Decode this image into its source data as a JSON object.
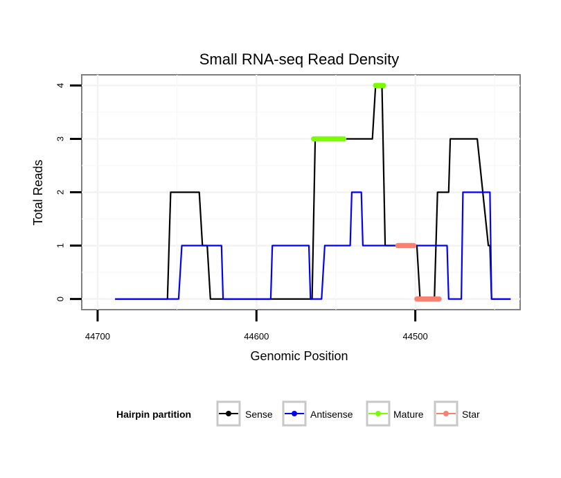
{
  "chart_data": {
    "type": "line",
    "title": "Small RNA-seq Read Density",
    "xlabel": "Genomic Position",
    "ylabel": "Total Reads",
    "xlim": [
      44710,
      44434
    ],
    "ylim": [
      -0.2,
      4.2
    ],
    "x_reversed": true,
    "x_ticks": [
      44700,
      44600,
      44500
    ],
    "y_ticks": [
      0,
      1,
      2,
      3,
      4
    ],
    "grid": true,
    "legend": {
      "title": "Hairpin partition",
      "placement": "bottom",
      "entries": [
        {
          "name": "Sense",
          "color": "#000000"
        },
        {
          "name": "Antisense",
          "color": "#0000ff"
        },
        {
          "name": "Mature",
          "color": "#7cfc00"
        },
        {
          "name": "Star",
          "color": "#fa8072"
        }
      ]
    },
    "series": [
      {
        "name": "Sense",
        "color": "#000000",
        "x": [
          44689,
          44656,
          44654,
          44636,
          44634,
          44631,
          44629,
          44609,
          44587,
          44565,
          44563,
          44545,
          44544,
          44527,
          44525,
          44521,
          44519,
          44502,
          44500,
          44499,
          44497,
          44488,
          44486,
          44479,
          44478,
          44473,
          44472,
          44462,
          44461,
          44454,
          44453,
          44452,
          44451,
          44440
        ],
        "y": [
          0,
          0,
          2,
          2,
          1,
          1,
          0,
          0,
          0,
          0,
          3,
          3,
          3,
          3,
          4,
          4,
          1,
          1,
          1,
          1,
          0,
          0,
          2,
          2,
          3,
          3,
          3,
          3,
          3,
          1,
          1,
          0,
          0,
          0
        ]
      },
      {
        "name": "Antisense",
        "color": "#0000ff",
        "x": [
          44689,
          44649,
          44647,
          44634,
          44633,
          44622,
          44621,
          44591,
          44590,
          44567,
          44566,
          44559,
          44557,
          44541,
          44540,
          44534,
          44533,
          44480,
          44479,
          44471,
          44470,
          44453,
          44452,
          44440
        ],
        "y": [
          0,
          0,
          1,
          1,
          1,
          1,
          0,
          0,
          1,
          1,
          0,
          0,
          1,
          1,
          2,
          2,
          1,
          1,
          0,
          0,
          2,
          2,
          0,
          0
        ]
      },
      {
        "name": "Mature",
        "color": "#7cfc00",
        "segments": [
          {
            "x": [
              44564,
              44545
            ],
            "y": [
              3,
              3
            ]
          },
          {
            "x": [
              44525,
              44520
            ],
            "y": [
              4,
              4
            ]
          }
        ]
      },
      {
        "name": "Star",
        "color": "#fa8072",
        "segments": [
          {
            "x": [
              44511,
              44501
            ],
            "y": [
              1,
              1
            ]
          },
          {
            "x": [
              44499,
              44485
            ],
            "y": [
              0,
              0
            ]
          }
        ]
      }
    ]
  }
}
